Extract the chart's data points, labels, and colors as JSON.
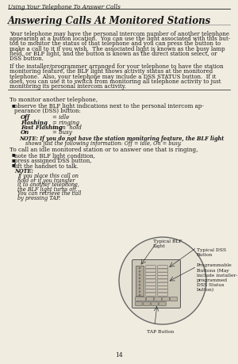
{
  "header": "Using Your Telephone To Answer Calls",
  "title": "Answering Calls At Monitored Stations",
  "para1_lines": [
    "Your telephone may have the personal intercom number of another telephone",
    "appearing at a button location.  You can use the light associated with this but-",
    "ton to monitor the status of that telephone and you can press the button to",
    "make a call to it if you wish.  The associated light is known as the busy lamp",
    "field, or BLF light, and the button is known as the direct station select, or",
    "DSS button."
  ],
  "para2_lines": [
    "If the installer/programmer arranged for your telephone to have the station",
    "monitoring feature, the BLF light shows activity status at the monitored",
    "telephone.  Also, your telephone may include a DSS STATUS button.  If it",
    "does, you can use it to switch from monitoring all telephone activity to just",
    "monitoring its personal intercom activity."
  ],
  "section1": "To monitor another telephone,",
  "bullet1a": "observe the BLF light indications next to the personal intercom ap-",
  "bullet1b": "pearance (DSS) button:",
  "table_rows": [
    [
      "Off",
      "= idle"
    ],
    [
      "Flashing",
      "= ringing"
    ],
    [
      "Fast Flashing",
      "= on  hold"
    ],
    [
      "On",
      "= busy"
    ]
  ],
  "note1a": "NOTE: If you do not have the station monitoring feature, the BLF light",
  "note1b": "shows just the following information: Off = idle, On = busy.",
  "section2": "To call an idle monitored station or to answer one that is ringing,",
  "bullet2": "note the BLF light condition,",
  "bullet3": "press assigned DSS button,",
  "bullet4": "lift the handset to talk.",
  "note2_head": "NOTE:",
  "note2_lines": [
    "If you place this call on",
    "hold or if you transfer",
    "it to another telephone,",
    "the BLF light turns off.",
    "You can retrieve the call",
    "by pressing TAP."
  ],
  "label_blf": "Typical BLF\nLight",
  "label_dss": "Typical DSS\nButton",
  "label_prog": "Programmable\nButtons (May\ninclude installer-\nprogrammed\nDSS Status\nbutton)",
  "label_tap": "TAP Button",
  "page_num": "14",
  "bg_color": "#f0ece0",
  "text_color": "#1a1a1a"
}
